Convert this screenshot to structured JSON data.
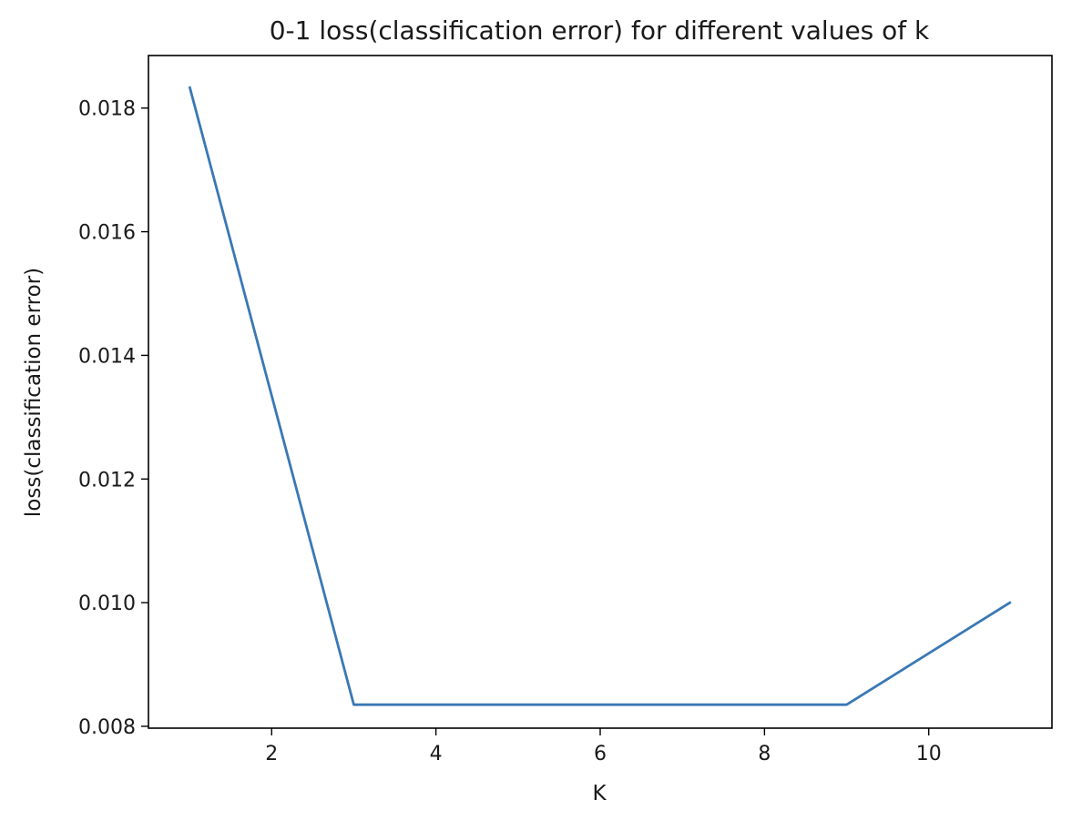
{
  "chart_data": {
    "type": "line",
    "title": "0-1 loss(classification error) for different values of k",
    "xlabel": "K",
    "ylabel": "loss(classification error)",
    "xlim": [
      0.5,
      11.5
    ],
    "ylim": [
      0.00797,
      0.01885
    ],
    "xticks": [
      2,
      4,
      6,
      8,
      10
    ],
    "yticks": [
      0.008,
      0.01,
      0.012,
      0.014,
      0.016,
      0.018
    ],
    "xtick_labels": [
      "2",
      "4",
      "6",
      "8",
      "10"
    ],
    "ytick_labels": [
      "0.008",
      "0.010",
      "0.012",
      "0.014",
      "0.016",
      "0.018"
    ],
    "grid": false,
    "series": [
      {
        "color": "#3a78b4",
        "x": [
          1,
          3,
          5,
          7,
          9,
          11
        ],
        "y": [
          0.01835,
          0.00835,
          0.00835,
          0.00835,
          0.00835,
          0.01001
        ]
      }
    ]
  }
}
